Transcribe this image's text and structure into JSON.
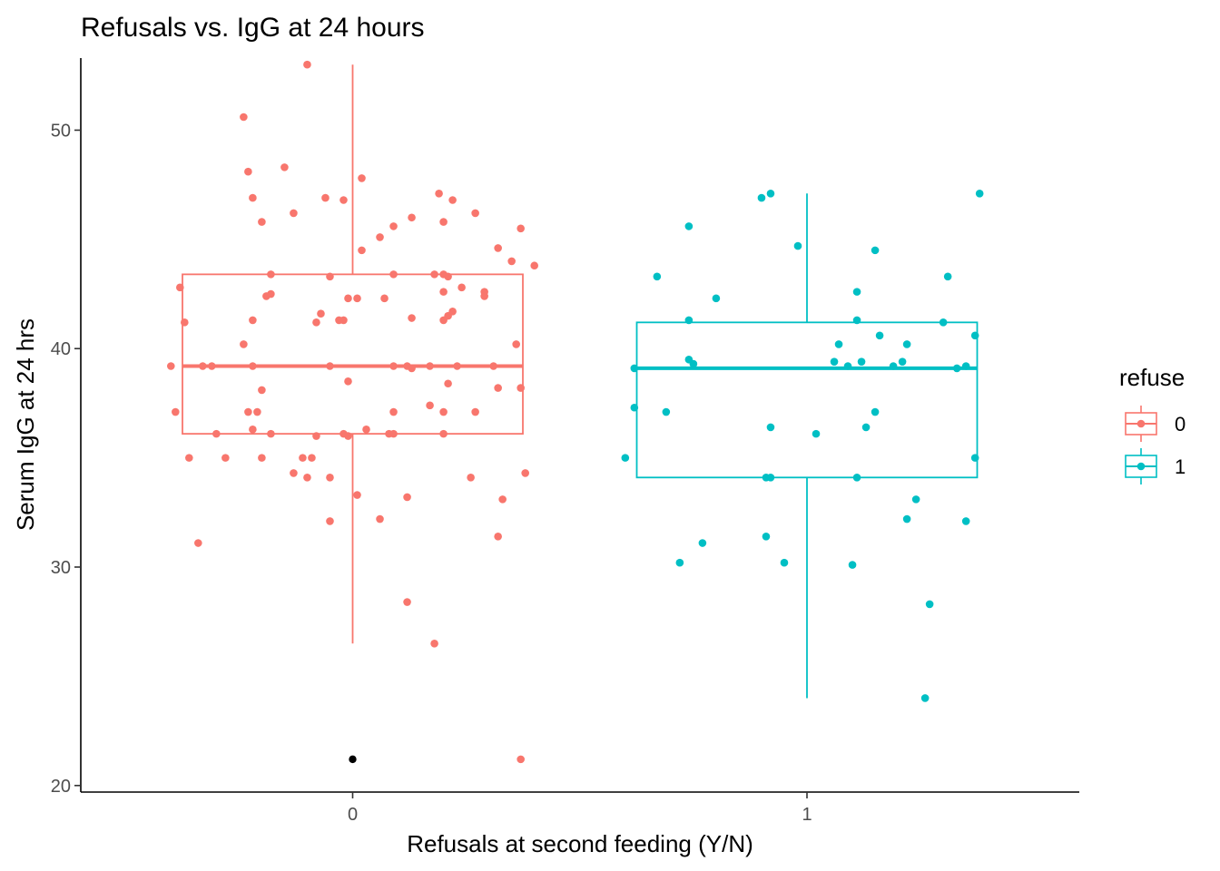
{
  "chart_data": {
    "type": "boxplot_jitter",
    "title": "Refusals vs. IgG at 24 hours",
    "xlabel": "Refusals at second feeding (Y/N)",
    "ylabel": "Serum IgG at 24 hrs",
    "categories": [
      "0",
      "1"
    ],
    "ylim": [
      19.7,
      53.3
    ],
    "yticks": [
      20,
      30,
      40,
      50
    ],
    "grid": false,
    "legend": {
      "title": "refuse",
      "position": "right",
      "entries": [
        {
          "label": "0",
          "color": "#F8766D"
        },
        {
          "label": "1",
          "color": "#00BFC4"
        }
      ]
    },
    "series": [
      {
        "name": "0",
        "category": "0",
        "color": "#F8766D",
        "box": {
          "whisker_low": 26.5,
          "q1": 36.1,
          "median": 39.2,
          "q3": 43.4,
          "whisker_high": 53.0
        },
        "outliers": [
          21.2
        ],
        "points": [
          [
            -0.4,
            39.2
          ],
          [
            -0.39,
            37.1
          ],
          [
            -0.38,
            42.8
          ],
          [
            -0.37,
            41.2
          ],
          [
            -0.36,
            35.0
          ],
          [
            -0.34,
            31.1
          ],
          [
            -0.33,
            39.2
          ],
          [
            -0.31,
            39.2
          ],
          [
            -0.3,
            36.1
          ],
          [
            -0.28,
            35.0
          ],
          [
            -0.24,
            40.2
          ],
          [
            -0.24,
            50.6
          ],
          [
            -0.23,
            48.1
          ],
          [
            -0.23,
            37.1
          ],
          [
            -0.22,
            41.3
          ],
          [
            -0.22,
            46.9
          ],
          [
            -0.22,
            39.2
          ],
          [
            -0.22,
            36.3
          ],
          [
            -0.21,
            37.1
          ],
          [
            -0.2,
            35.0
          ],
          [
            -0.2,
            38.1
          ],
          [
            -0.2,
            45.8
          ],
          [
            -0.19,
            42.4
          ],
          [
            -0.18,
            42.5
          ],
          [
            -0.18,
            43.4
          ],
          [
            -0.18,
            36.1
          ],
          [
            -0.15,
            48.3
          ],
          [
            -0.13,
            46.2
          ],
          [
            -0.13,
            34.3
          ],
          [
            -0.11,
            35.0
          ],
          [
            -0.1,
            34.1
          ],
          [
            -0.1,
            53.0
          ],
          [
            -0.09,
            35.0
          ],
          [
            -0.08,
            36.0
          ],
          [
            -0.08,
            41.2
          ],
          [
            -0.07,
            41.6
          ],
          [
            -0.06,
            46.9
          ],
          [
            -0.05,
            39.2
          ],
          [
            -0.05,
            34.1
          ],
          [
            -0.05,
            43.3
          ],
          [
            -0.05,
            32.1
          ],
          [
            -0.03,
            41.3
          ],
          [
            -0.02,
            41.3
          ],
          [
            -0.02,
            46.8
          ],
          [
            -0.02,
            36.1
          ],
          [
            -0.01,
            42.3
          ],
          [
            -0.01,
            38.5
          ],
          [
            -0.01,
            36.0
          ],
          [
            0.01,
            42.3
          ],
          [
            0.01,
            33.3
          ],
          [
            0.02,
            47.8
          ],
          [
            0.02,
            44.5
          ],
          [
            0.03,
            36.3
          ],
          [
            0.06,
            32.2
          ],
          [
            0.06,
            45.1
          ],
          [
            0.07,
            42.3
          ],
          [
            0.08,
            36.1
          ],
          [
            0.09,
            45.6
          ],
          [
            0.09,
            36.1
          ],
          [
            0.09,
            43.4
          ],
          [
            0.09,
            39.2
          ],
          [
            0.09,
            37.1
          ],
          [
            0.12,
            39.2
          ],
          [
            0.12,
            28.4
          ],
          [
            0.12,
            33.2
          ],
          [
            0.13,
            46.0
          ],
          [
            0.13,
            41.4
          ],
          [
            0.13,
            39.1
          ],
          [
            0.17,
            37.4
          ],
          [
            0.17,
            39.2
          ],
          [
            0.18,
            26.5
          ],
          [
            0.18,
            43.4
          ],
          [
            0.19,
            47.1
          ],
          [
            0.2,
            42.6
          ],
          [
            0.2,
            41.3
          ],
          [
            0.2,
            37.1
          ],
          [
            0.2,
            36.1
          ],
          [
            0.2,
            43.4
          ],
          [
            0.2,
            45.8
          ],
          [
            0.21,
            38.4
          ],
          [
            0.21,
            41.5
          ],
          [
            0.21,
            43.3
          ],
          [
            0.22,
            41.7
          ],
          [
            0.22,
            46.8
          ],
          [
            0.23,
            39.2
          ],
          [
            0.24,
            42.8
          ],
          [
            0.26,
            34.1
          ],
          [
            0.27,
            46.2
          ],
          [
            0.27,
            37.1
          ],
          [
            0.29,
            42.6
          ],
          [
            0.29,
            42.4
          ],
          [
            0.31,
            39.2
          ],
          [
            0.32,
            31.4
          ],
          [
            0.32,
            38.2
          ],
          [
            0.32,
            44.6
          ],
          [
            0.33,
            33.1
          ],
          [
            0.35,
            44.0
          ],
          [
            0.36,
            40.2
          ],
          [
            0.37,
            45.5
          ],
          [
            0.37,
            38.2
          ],
          [
            0.37,
            21.2
          ],
          [
            0.38,
            34.3
          ],
          [
            0.4,
            43.8
          ]
        ]
      },
      {
        "name": "1",
        "category": "1",
        "color": "#00BFC4",
        "box": {
          "whisker_low": 24.0,
          "q1": 34.1,
          "median": 39.1,
          "q3": 41.2,
          "whisker_high": 47.1
        },
        "outliers": [],
        "points": [
          [
            -0.4,
            35.0
          ],
          [
            -0.38,
            39.1
          ],
          [
            -0.38,
            37.3
          ],
          [
            -0.33,
            43.3
          ],
          [
            -0.31,
            37.1
          ],
          [
            -0.28,
            30.2
          ],
          [
            -0.26,
            45.6
          ],
          [
            -0.26,
            41.3
          ],
          [
            -0.26,
            39.5
          ],
          [
            -0.25,
            39.3
          ],
          [
            -0.23,
            31.1
          ],
          [
            -0.2,
            42.3
          ],
          [
            -0.1,
            46.9
          ],
          [
            -0.09,
            34.1
          ],
          [
            -0.09,
            31.4
          ],
          [
            -0.08,
            47.1
          ],
          [
            -0.08,
            34.1
          ],
          [
            -0.08,
            36.4
          ],
          [
            -0.05,
            30.2
          ],
          [
            -0.02,
            44.7
          ],
          [
            0.02,
            36.1
          ],
          [
            0.06,
            39.4
          ],
          [
            0.07,
            40.2
          ],
          [
            0.09,
            39.2
          ],
          [
            0.1,
            30.1
          ],
          [
            0.11,
            42.6
          ],
          [
            0.11,
            41.3
          ],
          [
            0.11,
            34.1
          ],
          [
            0.12,
            39.4
          ],
          [
            0.13,
            36.4
          ],
          [
            0.15,
            37.1
          ],
          [
            0.15,
            44.5
          ],
          [
            0.16,
            40.6
          ],
          [
            0.19,
            39.2
          ],
          [
            0.21,
            39.4
          ],
          [
            0.22,
            40.2
          ],
          [
            0.22,
            32.2
          ],
          [
            0.24,
            33.1
          ],
          [
            0.26,
            24.0
          ],
          [
            0.27,
            28.3
          ],
          [
            0.3,
            41.2
          ],
          [
            0.31,
            43.3
          ],
          [
            0.33,
            39.1
          ],
          [
            0.35,
            39.2
          ],
          [
            0.35,
            32.1
          ],
          [
            0.37,
            40.6
          ],
          [
            0.37,
            35.0
          ],
          [
            0.38,
            47.1
          ]
        ]
      }
    ]
  }
}
